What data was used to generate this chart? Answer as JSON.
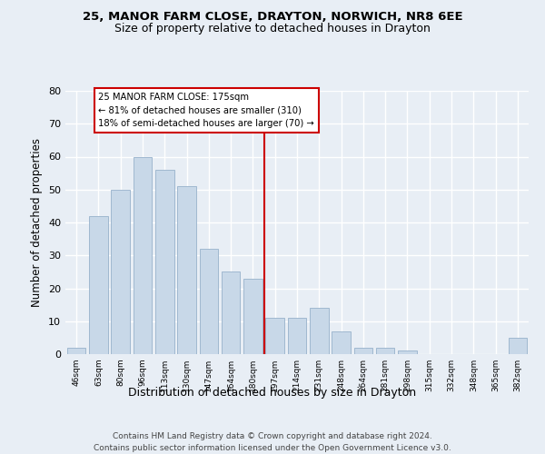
{
  "title1": "25, MANOR FARM CLOSE, DRAYTON, NORWICH, NR8 6EE",
  "title2": "Size of property relative to detached houses in Drayton",
  "xlabel": "Distribution of detached houses by size in Drayton",
  "ylabel": "Number of detached properties",
  "categories": [
    "46sqm",
    "63sqm",
    "80sqm",
    "96sqm",
    "113sqm",
    "130sqm",
    "147sqm",
    "164sqm",
    "180sqm",
    "197sqm",
    "214sqm",
    "231sqm",
    "248sqm",
    "264sqm",
    "281sqm",
    "298sqm",
    "315sqm",
    "332sqm",
    "348sqm",
    "365sqm",
    "382sqm"
  ],
  "values": [
    2,
    42,
    50,
    60,
    56,
    51,
    32,
    25,
    23,
    11,
    11,
    14,
    7,
    2,
    2,
    1,
    0,
    0,
    0,
    0,
    5
  ],
  "bar_color": "#c8d8e8",
  "bar_edge_color": "#a0b8d0",
  "vline_x": 8.5,
  "vline_color": "#cc0000",
  "annotation_text": "25 MANOR FARM CLOSE: 175sqm\n← 81% of detached houses are smaller (310)\n18% of semi-detached houses are larger (70) →",
  "annotation_box_color": "#cc0000",
  "ylim": [
    0,
    80
  ],
  "yticks": [
    0,
    10,
    20,
    30,
    40,
    50,
    60,
    70,
    80
  ],
  "footer": "Contains HM Land Registry data © Crown copyright and database right 2024.\nContains public sector information licensed under the Open Government Licence v3.0.",
  "bg_color": "#e8eef5",
  "plot_bg_color": "#e8eef5"
}
